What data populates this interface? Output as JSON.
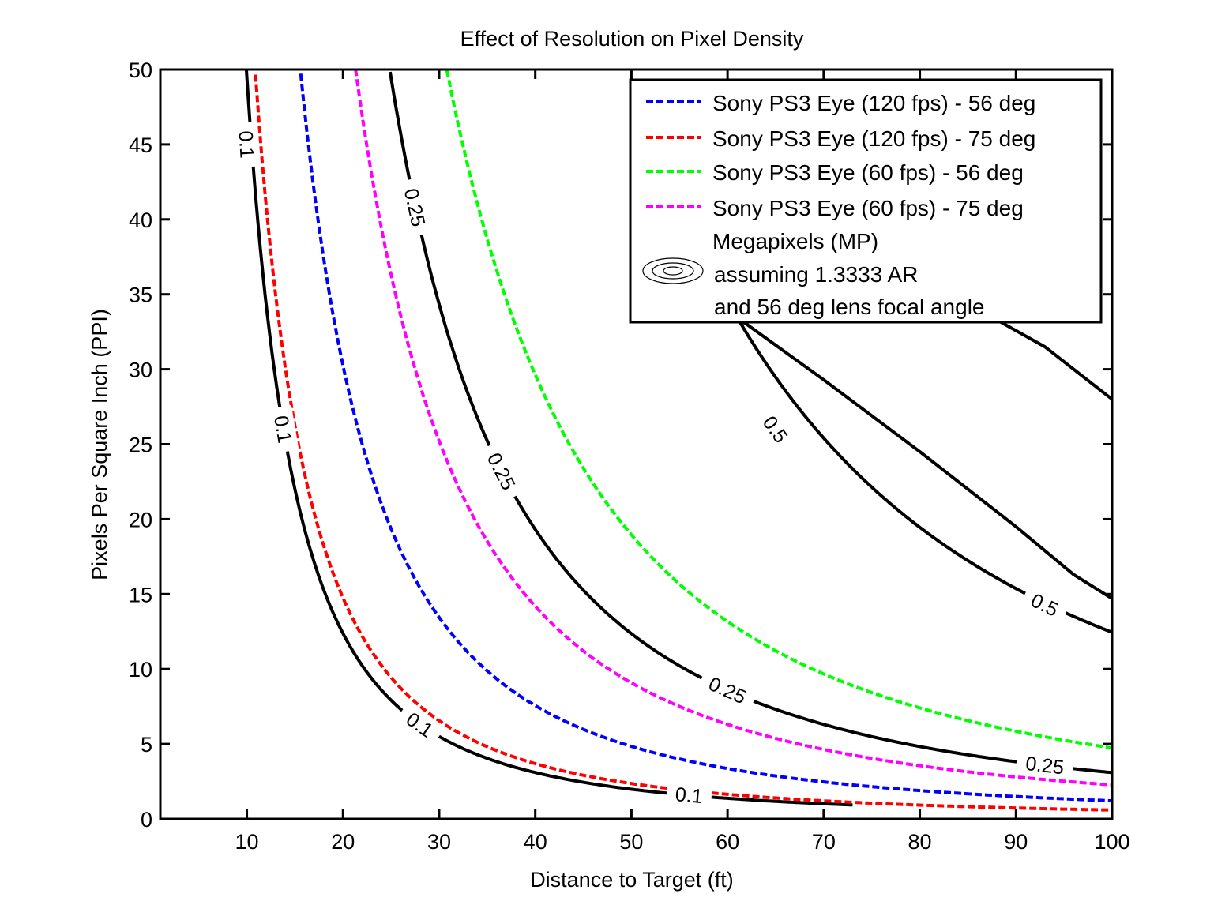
{
  "chart_data": {
    "type": "line",
    "title": "Effect of Resolution on Pixel Density",
    "xlabel": "Distance to Target  (ft)",
    "ylabel": "Pixels Per Square Inch  (PPI)",
    "xlim": [
      1,
      100
    ],
    "ylim": [
      0,
      50
    ],
    "xticks": [
      10,
      20,
      30,
      40,
      50,
      60,
      70,
      80,
      90,
      100
    ],
    "yticks": [
      0,
      5,
      10,
      15,
      20,
      25,
      30,
      35,
      40,
      45,
      50
    ],
    "grid": false,
    "legend_position": "top-right",
    "series": [
      {
        "name": "Sony PS3 Eye (120 fps) - 56 deg",
        "color": "#0000ff",
        "style": "dashed",
        "x_start": 15.6,
        "k": 12100
      },
      {
        "name": "Sony PS3 Eye (120 fps) - 75 deg",
        "color": "#ff0000",
        "style": "dashed",
        "x_start": 10.9,
        "k": 5900
      },
      {
        "name": "Sony PS3 Eye (60 fps) - 56 deg",
        "color": "#00ff00",
        "style": "dashed",
        "x_start": 30.8,
        "k": 47400
      },
      {
        "name": "Sony PS3 Eye (60 fps) - 75 deg",
        "color": "#ff00ff",
        "style": "dashed",
        "x_start": 21.3,
        "k": 22700
      }
    ],
    "contours": [
      {
        "level": "0.1",
        "color": "#000000",
        "k": 4950,
        "x_start": 9.95,
        "x_end": 73,
        "labels": [
          {
            "x": 10.0,
            "y": 45.0
          },
          {
            "x": 13.8,
            "y": 26.0
          },
          {
            "x": 28.0,
            "y": 6.3
          },
          {
            "x": 56.0,
            "y": 1.6
          }
        ]
      },
      {
        "level": "0.25",
        "color": "#000000",
        "k": 30900,
        "x_start": 24.9,
        "x_end": 100,
        "labels": [
          {
            "x": 27.5,
            "y": 40.8
          },
          {
            "x": 36.5,
            "y": 23.2
          },
          {
            "x": 60.0,
            "y": 8.6
          },
          {
            "x": 93.0,
            "y": 3.6
          }
        ]
      },
      {
        "level": "0.5",
        "color": "#000000",
        "k": 124500,
        "x_start": 60,
        "x_end": 100,
        "labels": [
          {
            "x": 65.0,
            "y": 26.0
          },
          {
            "x": 93.0,
            "y": 14.3
          }
        ]
      }
    ],
    "outer_contours": [
      {
        "note": "partial",
        "points": [
          [
            55.0,
            35.5
          ],
          [
            62.0,
            33.0
          ],
          [
            70.0,
            29.3
          ],
          [
            80.0,
            24.5
          ],
          [
            90.0,
            19.5
          ],
          [
            96.0,
            16.3
          ],
          [
            100.0,
            14.7
          ]
        ],
        "visible_above_legend": false
      },
      {
        "points": [
          [
            88.0,
            33.3
          ],
          [
            93.0,
            31.5
          ],
          [
            100.0,
            28.0
          ]
        ]
      }
    ],
    "legend": {
      "contour_entry": [
        "Megapixels (MP)",
        " assuming 1.3333 AR",
        " and 56 deg lens focal angle"
      ]
    }
  }
}
